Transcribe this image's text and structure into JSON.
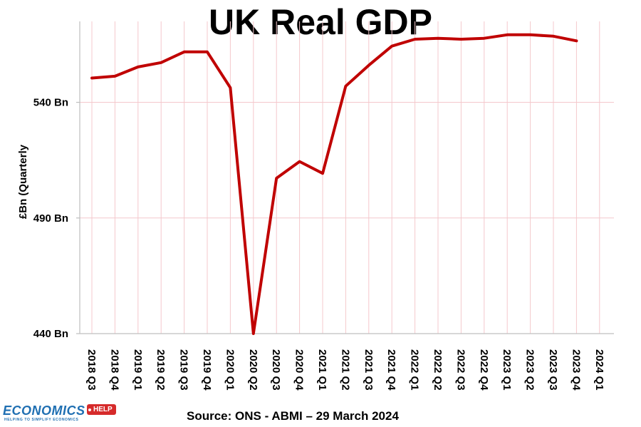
{
  "chart_data": {
    "type": "line",
    "title": "UK Real GDP",
    "ylabel": "£Bn (Quarterly",
    "xlabel": "",
    "ylim": [
      440,
      575
    ],
    "yticks": [
      {
        "value": 440,
        "label": "440 Bn"
      },
      {
        "value": 490,
        "label": "490 Bn"
      },
      {
        "value": 540,
        "label": "540 Bn"
      }
    ],
    "categories": [
      "2018 Q3",
      "2018 Q4",
      "2019 Q1",
      "2019 Q2",
      "2019 Q3",
      "2019 Q4",
      "2020 Q1",
      "2020 Q2",
      "2020 Q3",
      "2020 Q4",
      "2021 Q1",
      "2021 Q2",
      "2021 Q3",
      "2021 Q4",
      "2022 Q1",
      "2022 Q2",
      "2022 Q3",
      "2022 Q4",
      "2023 Q1",
      "2023 Q2",
      "2023 Q3",
      "2023 Q4",
      "2024 Q1"
    ],
    "series": [
      {
        "name": "UK Real GDP",
        "color": "#c00000",
        "values": [
          550.5,
          551.3,
          555.3,
          557.2,
          561.8,
          561.8,
          546.3,
          440.0,
          507.2,
          514.4,
          509.3,
          547.0,
          556.0,
          564.3,
          567.3,
          567.7,
          567.3,
          567.7,
          569.2,
          569.2,
          568.6,
          566.6,
          null
        ]
      }
    ],
    "grid": true,
    "source": "Source: ONS - ABMI – 29 March 2024"
  },
  "logo": {
    "word": "ECONOMICS",
    "tag": "HELP",
    "tagline": "HELPING TO SIMPLIFY ECONOMICS"
  },
  "colors": {
    "line": "#c00000",
    "grid": "#f4c8cc",
    "axis": "#bfbfbf"
  }
}
